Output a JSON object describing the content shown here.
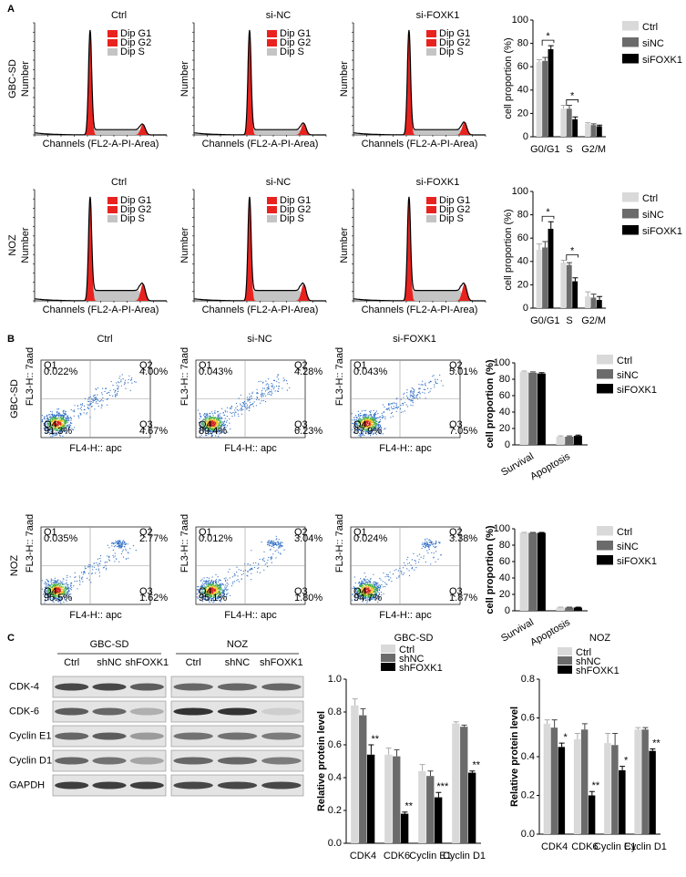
{
  "panel_labels": [
    "A",
    "B",
    "C"
  ],
  "cell_cycle": {
    "columns": [
      "Ctrl",
      "si-NC",
      "si-FOXK1"
    ],
    "rows": [
      "GBC-SD",
      "NOZ"
    ],
    "legend": [
      "Dip G1",
      "Dip G2",
      "Dip S"
    ],
    "legend_colors": [
      "#e8231f",
      "#e8231f",
      "#c4c4c4"
    ],
    "x_label": "Channels (FL2-A-PI-Area)",
    "y_label": "Number"
  },
  "apoptosis": {
    "columns": [
      "Ctrl",
      "si-NC",
      "si-FOXK1"
    ],
    "rows": [
      {
        "label": "GBC-SD",
        "plots": [
          {
            "q1": "0.022%",
            "q2": "4.00%",
            "q3": "4.67%",
            "q4": "91.3%"
          },
          {
            "q1": "0.043%",
            "q2": "4.28%",
            "q3": "6.23%",
            "q4": "89.4%"
          },
          {
            "q1": "0.043%",
            "q2": "5.01%",
            "q3": "7.05%",
            "q4": "87.9%"
          }
        ]
      },
      {
        "label": "NOZ",
        "plots": [
          {
            "q1": "0.035%",
            "q2": "2.77%",
            "q3": "1.62%",
            "q4": "95.5%"
          },
          {
            "q1": "0.012%",
            "q2": "3.04%",
            "q3": "1.80%",
            "q4": "95.1%"
          },
          {
            "q1": "0.024%",
            "q2": "3.38%",
            "q3": "1.87%",
            "q4": "94.7%"
          }
        ]
      }
    ],
    "quadrants": [
      "Q1",
      "Q2",
      "Q3",
      "Q4"
    ],
    "x_label": "FL4-H:: apc",
    "y_label": "FL3-H:: 7aad"
  },
  "blot": {
    "groups": [
      "GBC-SD",
      "NOZ"
    ],
    "lanes": [
      "Ctrl",
      "shNC",
      "shFOXK1"
    ],
    "rows": [
      "CDK-4",
      "CDK-6",
      "Cyclin E1",
      "Cyclin D1",
      "GAPDH"
    ]
  },
  "chart_data": [
    {
      "type": "bar",
      "y_label": "cell proportion (%)",
      "categories": [
        "G0/G1",
        "S",
        "G2/M"
      ],
      "series": [
        {
          "name": "Ctrl",
          "color": "#d9d9d9",
          "values": [
            64,
            24,
            11
          ],
          "errors": [
            2,
            3,
            1
          ]
        },
        {
          "name": "siNC",
          "color": "#6b6b6b",
          "values": [
            65,
            24,
            10
          ],
          "errors": [
            3,
            3,
            1
          ]
        },
        {
          "name": "siFOXK1",
          "color": "#000000",
          "values": [
            75,
            15,
            9
          ],
          "errors": [
            3,
            2,
            1
          ]
        }
      ],
      "ylim": [
        0,
        100
      ],
      "yticks": [
        0,
        20,
        40,
        60,
        80,
        100
      ],
      "brackets": [
        "*",
        "*",
        null
      ],
      "legend": "right"
    },
    {
      "type": "bar",
      "y_label": "cell proportion (%)",
      "categories": [
        "G0/G1",
        "S",
        "G2/M"
      ],
      "series": [
        {
          "name": "Ctrl",
          "color": "#d9d9d9",
          "values": [
            50,
            39,
            10
          ],
          "errors": [
            5,
            2,
            4
          ]
        },
        {
          "name": "siNC",
          "color": "#6b6b6b",
          "values": [
            52,
            37,
            9
          ],
          "errors": [
            5,
            2,
            3
          ]
        },
        {
          "name": "siFOXK1",
          "color": "#000000",
          "values": [
            68,
            23,
            7
          ],
          "errors": [
            6,
            3,
            3
          ]
        }
      ],
      "ylim": [
        0,
        100
      ],
      "yticks": [
        0,
        20,
        40,
        60,
        80,
        100
      ],
      "brackets": [
        "*",
        "*",
        null
      ],
      "legend": "right"
    },
    {
      "type": "bar",
      "y_label": "cell proportion (%)",
      "categories": [
        "Survival",
        "Apoptosis"
      ],
      "series": [
        {
          "name": "Ctrl",
          "color": "#d9d9d9",
          "values": [
            89,
            10
          ],
          "errors": [
            1,
            1
          ]
        },
        {
          "name": "siNC",
          "color": "#6b6b6b",
          "values": [
            88,
            10
          ],
          "errors": [
            1,
            1
          ]
        },
        {
          "name": "siFOXK1",
          "color": "#000000",
          "values": [
            87,
            11
          ],
          "errors": [
            1,
            1
          ]
        }
      ],
      "ylim": [
        0,
        100
      ],
      "yticks": [
        0,
        20,
        40,
        60,
        80,
        100
      ],
      "legend": "right"
    },
    {
      "type": "bar",
      "y_label": "cell proportion (%)",
      "categories": [
        "Survival",
        "Apoptosis"
      ],
      "series": [
        {
          "name": "Ctrl",
          "color": "#d9d9d9",
          "values": [
            95,
            4
          ],
          "errors": [
            0.5,
            0.5
          ]
        },
        {
          "name": "siNC",
          "color": "#6b6b6b",
          "values": [
            95,
            4
          ],
          "errors": [
            0.5,
            0.5
          ]
        },
        {
          "name": "siFOXK1",
          "color": "#000000",
          "values": [
            95,
            4
          ],
          "errors": [
            0.5,
            0.5
          ]
        }
      ],
      "ylim": [
        0,
        100
      ],
      "yticks": [
        0,
        20,
        40,
        60,
        80,
        100
      ],
      "legend": "right"
    },
    {
      "type": "bar",
      "title": "GBC-SD",
      "y_label": "Relative  protein level",
      "categories": [
        "CDK4",
        "CDK6",
        "Cyclin E1",
        "Cyclin D1"
      ],
      "series": [
        {
          "name": "Ctrl",
          "color": "#d9d9d9",
          "values": [
            0.84,
            0.54,
            0.44,
            0.73
          ],
          "errors": [
            0.04,
            0.04,
            0.04,
            0.01
          ]
        },
        {
          "name": "shNC",
          "color": "#6b6b6b",
          "values": [
            0.78,
            0.53,
            0.41,
            0.71
          ],
          "errors": [
            0.04,
            0.04,
            0.03,
            0.01
          ]
        },
        {
          "name": "shFOXK1",
          "color": "#000000",
          "values": [
            0.54,
            0.18,
            0.28,
            0.43
          ],
          "errors": [
            0.06,
            0.01,
            0.03,
            0.01
          ]
        }
      ],
      "ylim": [
        0,
        1
      ],
      "yticks": [
        {
          "value": 0,
          "label": "0.0"
        },
        0.2,
        0.4,
        0.6,
        0.8,
        {
          "value": 1,
          "label": "1.0"
        }
      ],
      "significance": [
        "**",
        "**",
        "***",
        "**"
      ],
      "legend": "top"
    },
    {
      "type": "bar",
      "title": "NOZ",
      "y_label": "Relative  protein level",
      "categories": [
        "CDK4",
        "CDK6",
        "Cyclin E1",
        "Cyclin D1"
      ],
      "series": [
        {
          "name": "Ctrl",
          "color": "#d9d9d9",
          "values": [
            0.57,
            0.49,
            0.47,
            0.54
          ],
          "errors": [
            0.02,
            0.03,
            0.05,
            0.01
          ]
        },
        {
          "name": "shNC",
          "color": "#6b6b6b",
          "values": [
            0.55,
            0.54,
            0.46,
            0.54
          ],
          "errors": [
            0.04,
            0.03,
            0.06,
            0.01
          ]
        },
        {
          "name": "shFOXK1",
          "color": "#000000",
          "values": [
            0.45,
            0.2,
            0.33,
            0.43
          ],
          "errors": [
            0.02,
            0.02,
            0.02,
            0.01
          ]
        }
      ],
      "ylim": [
        0,
        0.8
      ],
      "yticks": [
        {
          "value": 0,
          "label": "0.0"
        },
        0.2,
        0.4,
        0.6,
        0.8
      ],
      "significance": [
        "*",
        "**",
        "*",
        "**"
      ],
      "legend": "top"
    }
  ]
}
